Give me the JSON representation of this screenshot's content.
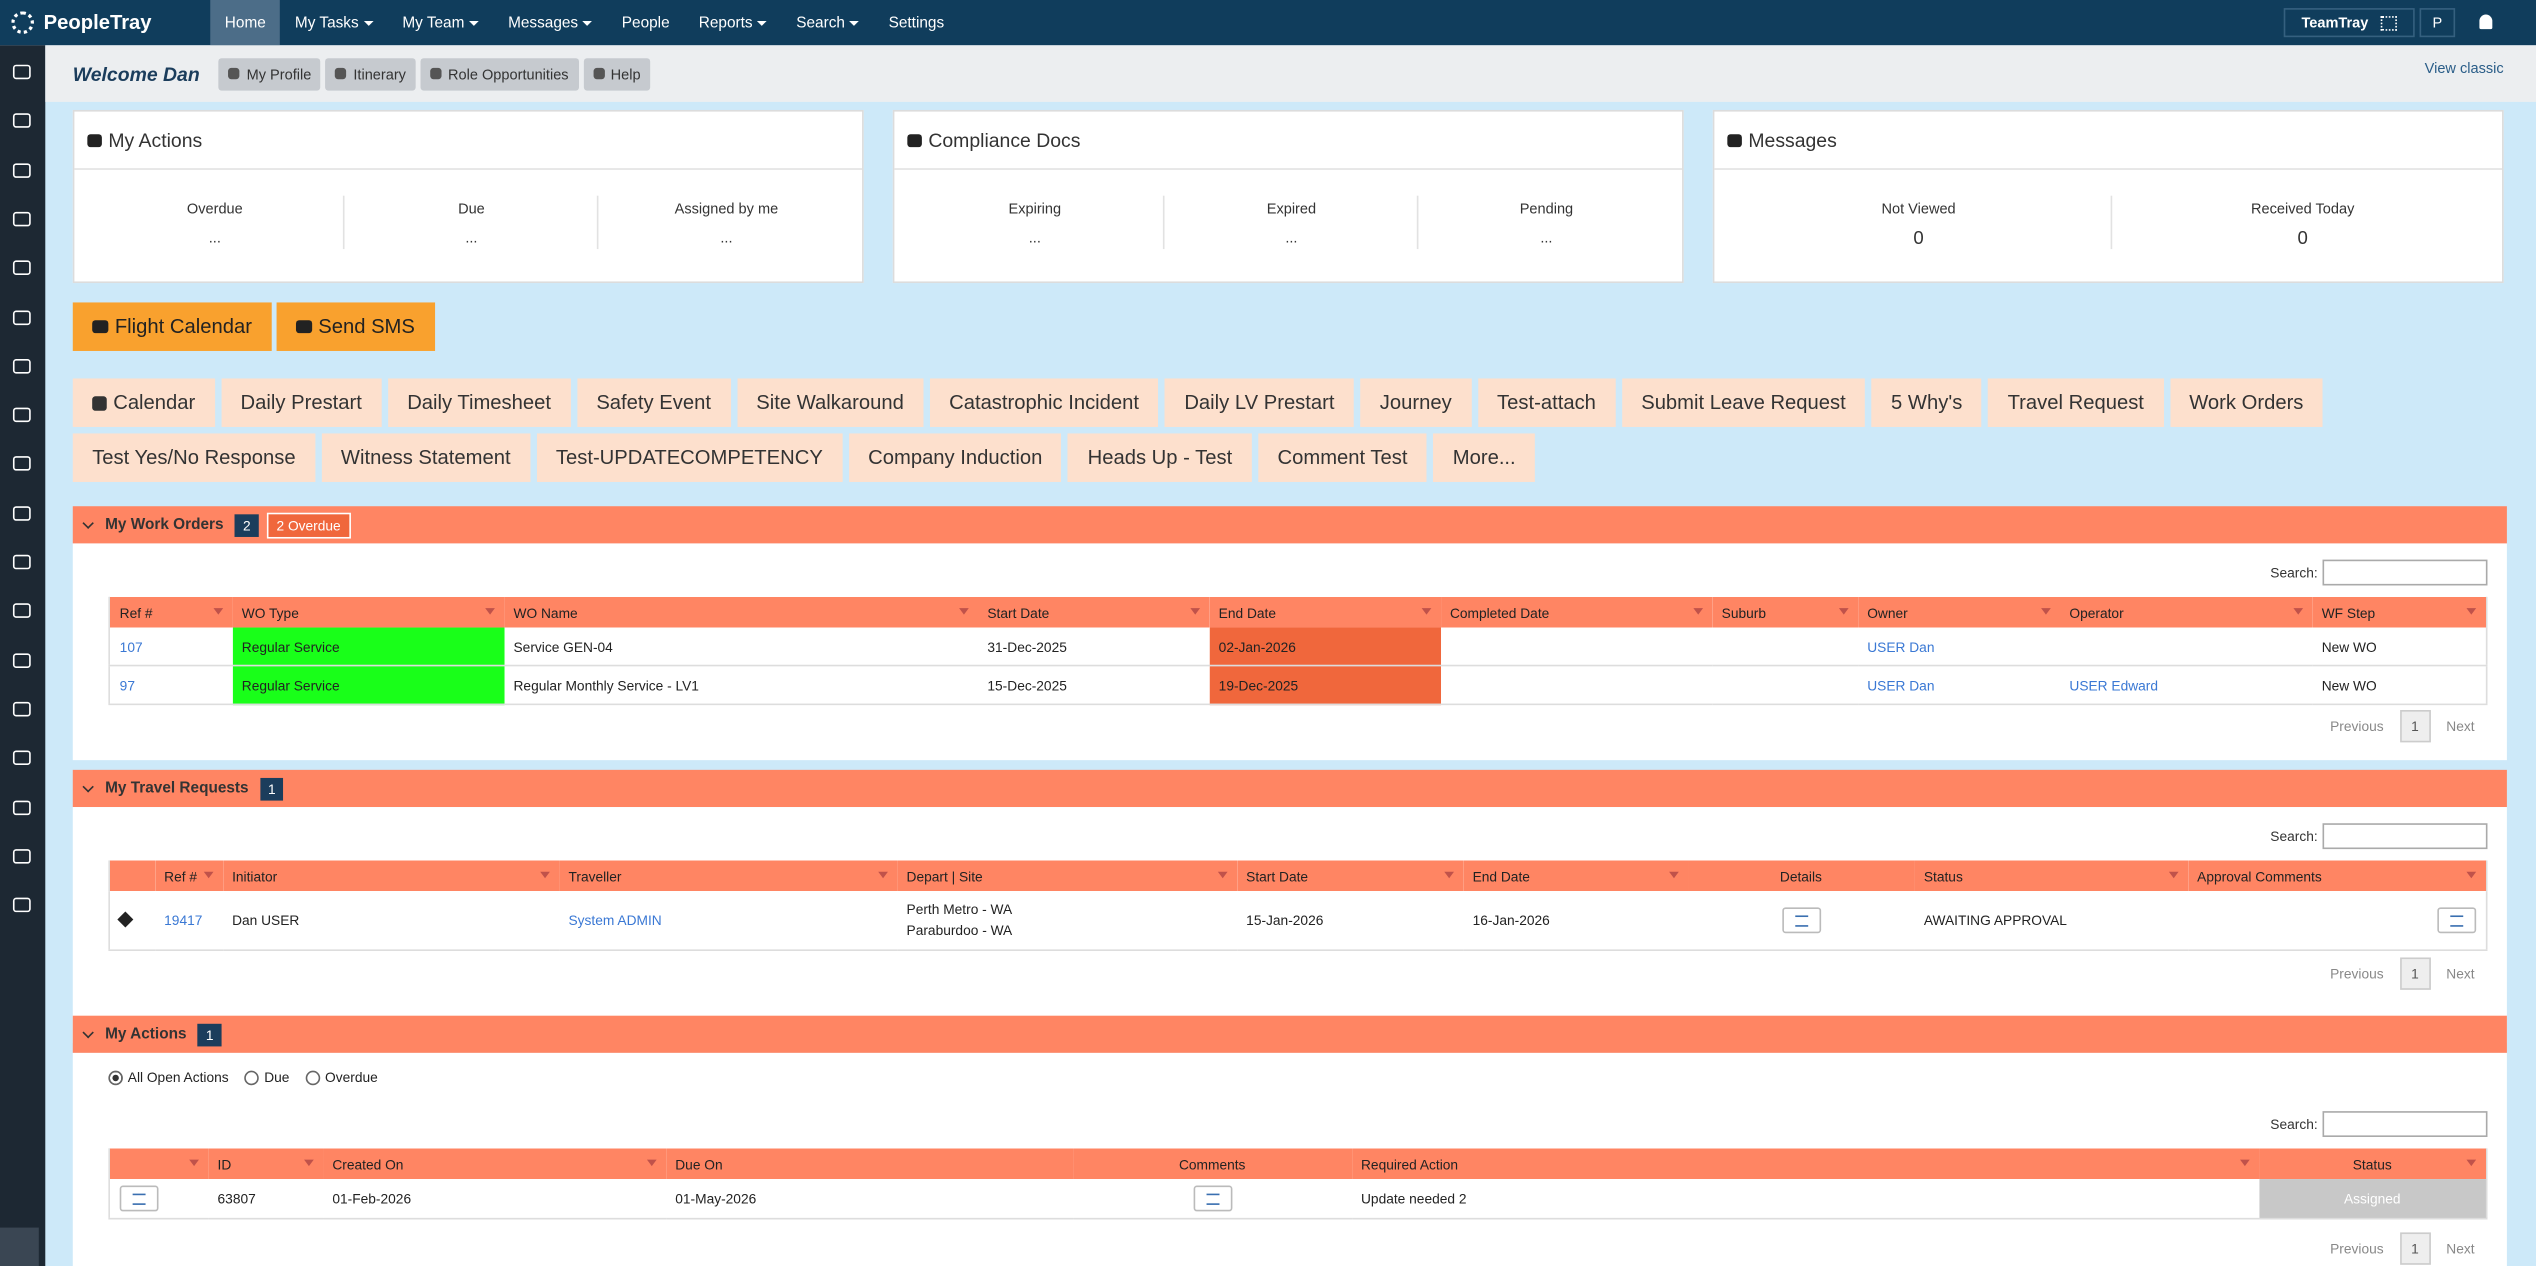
{
  "nav": {
    "brand": "PeopleTray",
    "items": [
      "Home",
      "My Tasks",
      "My Team",
      "Messages",
      "People",
      "Reports",
      "Search",
      "Settings"
    ],
    "team": "TeamTray",
    "initial": "P"
  },
  "subbar": {
    "welcome": "Welcome Dan",
    "buttons": [
      "My Profile",
      "Itinerary",
      "Role Opportunities",
      "Help"
    ],
    "view_classic": "View classic"
  },
  "summary": [
    {
      "title": "My Actions",
      "stats": [
        {
          "label": "Overdue",
          "value": "..."
        },
        {
          "label": "Due",
          "value": "..."
        },
        {
          "label": "Assigned by me",
          "value": "..."
        }
      ]
    },
    {
      "title": "Compliance Docs",
      "stats": [
        {
          "label": "Expiring",
          "value": "..."
        },
        {
          "label": "Expired",
          "value": "..."
        },
        {
          "label": "Pending",
          "value": "..."
        }
      ]
    },
    {
      "title": "Messages",
      "stats": [
        {
          "label": "Not Viewed",
          "value": 0
        },
        {
          "label": "Received Today",
          "value": 0
        }
      ]
    }
  ],
  "quick_buttons": [
    "Flight Calendar",
    "Send SMS"
  ],
  "forms": [
    "Calendar",
    "Daily Prestart",
    "Daily Timesheet",
    "Safety Event",
    "Site Walkaround",
    "Catastrophic Incident",
    "Daily LV Prestart",
    "Journey",
    "Test-attach",
    "Submit Leave Request",
    "5 Why's",
    "Travel Request",
    "Work Orders",
    "Test Yes/No Response",
    "Witness Statement",
    "Test-UPDATECOMPETENCY",
    "Company Induction",
    "Heads Up - Test",
    "Comment Test",
    "More..."
  ],
  "work_orders": {
    "title": "My Work Orders",
    "count": 2,
    "badge": "2 Overdue",
    "search_label": "Search:",
    "columns": [
      "Ref #",
      "WO Type",
      "WO Name",
      "Start Date",
      "End Date",
      "Completed Date",
      "Suburb",
      "Owner",
      "Operator",
      "WF Step"
    ],
    "rows": [
      [
        107,
        "Regular Service",
        "Service GEN-04",
        "31-Dec-2025",
        "02-Jan-2026",
        null,
        null,
        "USER Dan",
        null,
        "New WO"
      ],
      [
        97,
        "Regular Service",
        "Regular Monthly Service - LV1",
        "15-Dec-2025",
        "19-Dec-2025",
        null,
        null,
        "USER Dan",
        "USER Edward",
        "New WO"
      ]
    ],
    "pager": {
      "previous": "Previous",
      "page": 1,
      "next": "Next"
    }
  },
  "travel_requests": {
    "title": "My Travel Requests",
    "count": 1,
    "search_label": "Search:",
    "columns": [
      "Ref #",
      "Initiator",
      "Traveller",
      "Depart | Site",
      "Start Date",
      "End Date",
      "Details",
      "Status",
      "Approval Comments"
    ],
    "rows": [
      [
        19417,
        "Dan USER",
        "System ADMIN",
        [
          "Perth Metro - WA",
          "Paraburdoo - WA"
        ],
        "15-Jan-2026",
        "16-Jan-2026",
        null,
        "AWAITING APPROVAL",
        null
      ]
    ],
    "pager": {
      "previous": "Previous",
      "page": 1,
      "next": "Next"
    }
  },
  "actions": {
    "title": "My Actions",
    "count": 1,
    "filters": [
      "All Open Actions",
      "Due",
      "Overdue"
    ],
    "search_label": "Search:",
    "columns": [
      "ID",
      "Created On",
      "Due On",
      "Comments",
      "Required Action",
      "Status"
    ],
    "rows": [
      [
        63807,
        "01-Feb-2026",
        "01-May-2026",
        null,
        "Update needed 2",
        "Assigned"
      ]
    ],
    "pager": {
      "previous": "Previous",
      "page": 1,
      "next": "Next"
    }
  }
}
